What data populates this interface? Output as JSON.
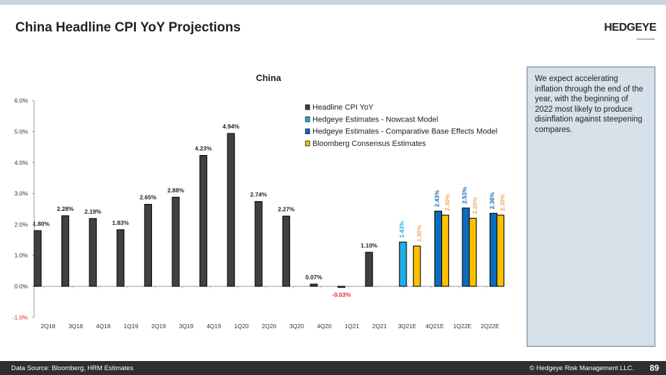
{
  "header": {
    "title": "China Headline CPI YoY Projections",
    "logo": "HEDGEYE"
  },
  "note": "We expect accelerating inflation through the end of the year, with the beginning of 2022 most likely to produce disinflation against steepening compares.",
  "footer": {
    "source": "Data Source: Bloomberg, HRM Estimates",
    "copyright": "© Hedgeye Risk Management LLC.",
    "page": "89"
  },
  "colors": {
    "historical": "#404040",
    "nowcast": "#1eaee8",
    "comparative": "#0a6cbf",
    "bloomberg": "#ffc000",
    "negative_label": "#e3262b",
    "bloomberg_label": "#f4a460"
  },
  "chart_data": {
    "type": "bar",
    "title": "China",
    "ylim": [
      -1.0,
      6.0
    ],
    "yticks": [
      "-1.0%",
      "0.0%",
      "1.0%",
      "2.0%",
      "3.0%",
      "4.0%",
      "5.0%",
      "6.0%"
    ],
    "legend_position": "top-right",
    "categories": [
      "2Q18",
      "3Q18",
      "4Q18",
      "1Q19",
      "2Q19",
      "3Q19",
      "4Q19",
      "1Q20",
      "2Q20",
      "3Q20",
      "4Q20",
      "1Q21",
      "2Q21",
      "3Q21E",
      "4Q21E",
      "1Q22E",
      "2Q22E"
    ],
    "series": [
      {
        "name": "Headline CPI YoY",
        "key": "historical",
        "values": [
          1.8,
          2.28,
          2.19,
          1.83,
          2.65,
          2.88,
          4.23,
          4.94,
          2.74,
          2.27,
          0.07,
          -0.03,
          1.1,
          null,
          null,
          null,
          null
        ],
        "labels": [
          "1.80%",
          "2.28%",
          "2.19%",
          "1.83%",
          "2.65%",
          "2.88%",
          "4.23%",
          "4.94%",
          "2.74%",
          "2.27%",
          "0.07%",
          "-0.03%",
          "1.10%",
          null,
          null,
          null,
          null
        ]
      },
      {
        "name": "Hedgeye Estimates - Nowcast Model",
        "key": "nowcast",
        "values": [
          null,
          null,
          null,
          null,
          null,
          null,
          null,
          null,
          null,
          null,
          null,
          null,
          null,
          1.43,
          null,
          null,
          null
        ],
        "labels": [
          null,
          null,
          null,
          null,
          null,
          null,
          null,
          null,
          null,
          null,
          null,
          null,
          null,
          "1.43%",
          null,
          null,
          null
        ]
      },
      {
        "name": "Hedgeye Estimates - Comparative Base Effects Model",
        "key": "comparative",
        "values": [
          null,
          null,
          null,
          null,
          null,
          null,
          null,
          null,
          null,
          null,
          null,
          null,
          null,
          null,
          2.43,
          2.53,
          2.36
        ],
        "labels": [
          null,
          null,
          null,
          null,
          null,
          null,
          null,
          null,
          null,
          null,
          null,
          null,
          null,
          null,
          "2.43%",
          "2.53%",
          "2.36%"
        ]
      },
      {
        "name": "Bloomberg Consensus Estimates",
        "key": "bloomberg",
        "values": [
          null,
          null,
          null,
          null,
          null,
          null,
          null,
          null,
          null,
          null,
          null,
          null,
          null,
          1.3,
          2.3,
          2.2,
          2.3
        ],
        "labels": [
          null,
          null,
          null,
          null,
          null,
          null,
          null,
          null,
          null,
          null,
          null,
          null,
          null,
          "1.30%",
          "2.30%",
          "2.20%",
          "2.30%"
        ]
      }
    ]
  }
}
